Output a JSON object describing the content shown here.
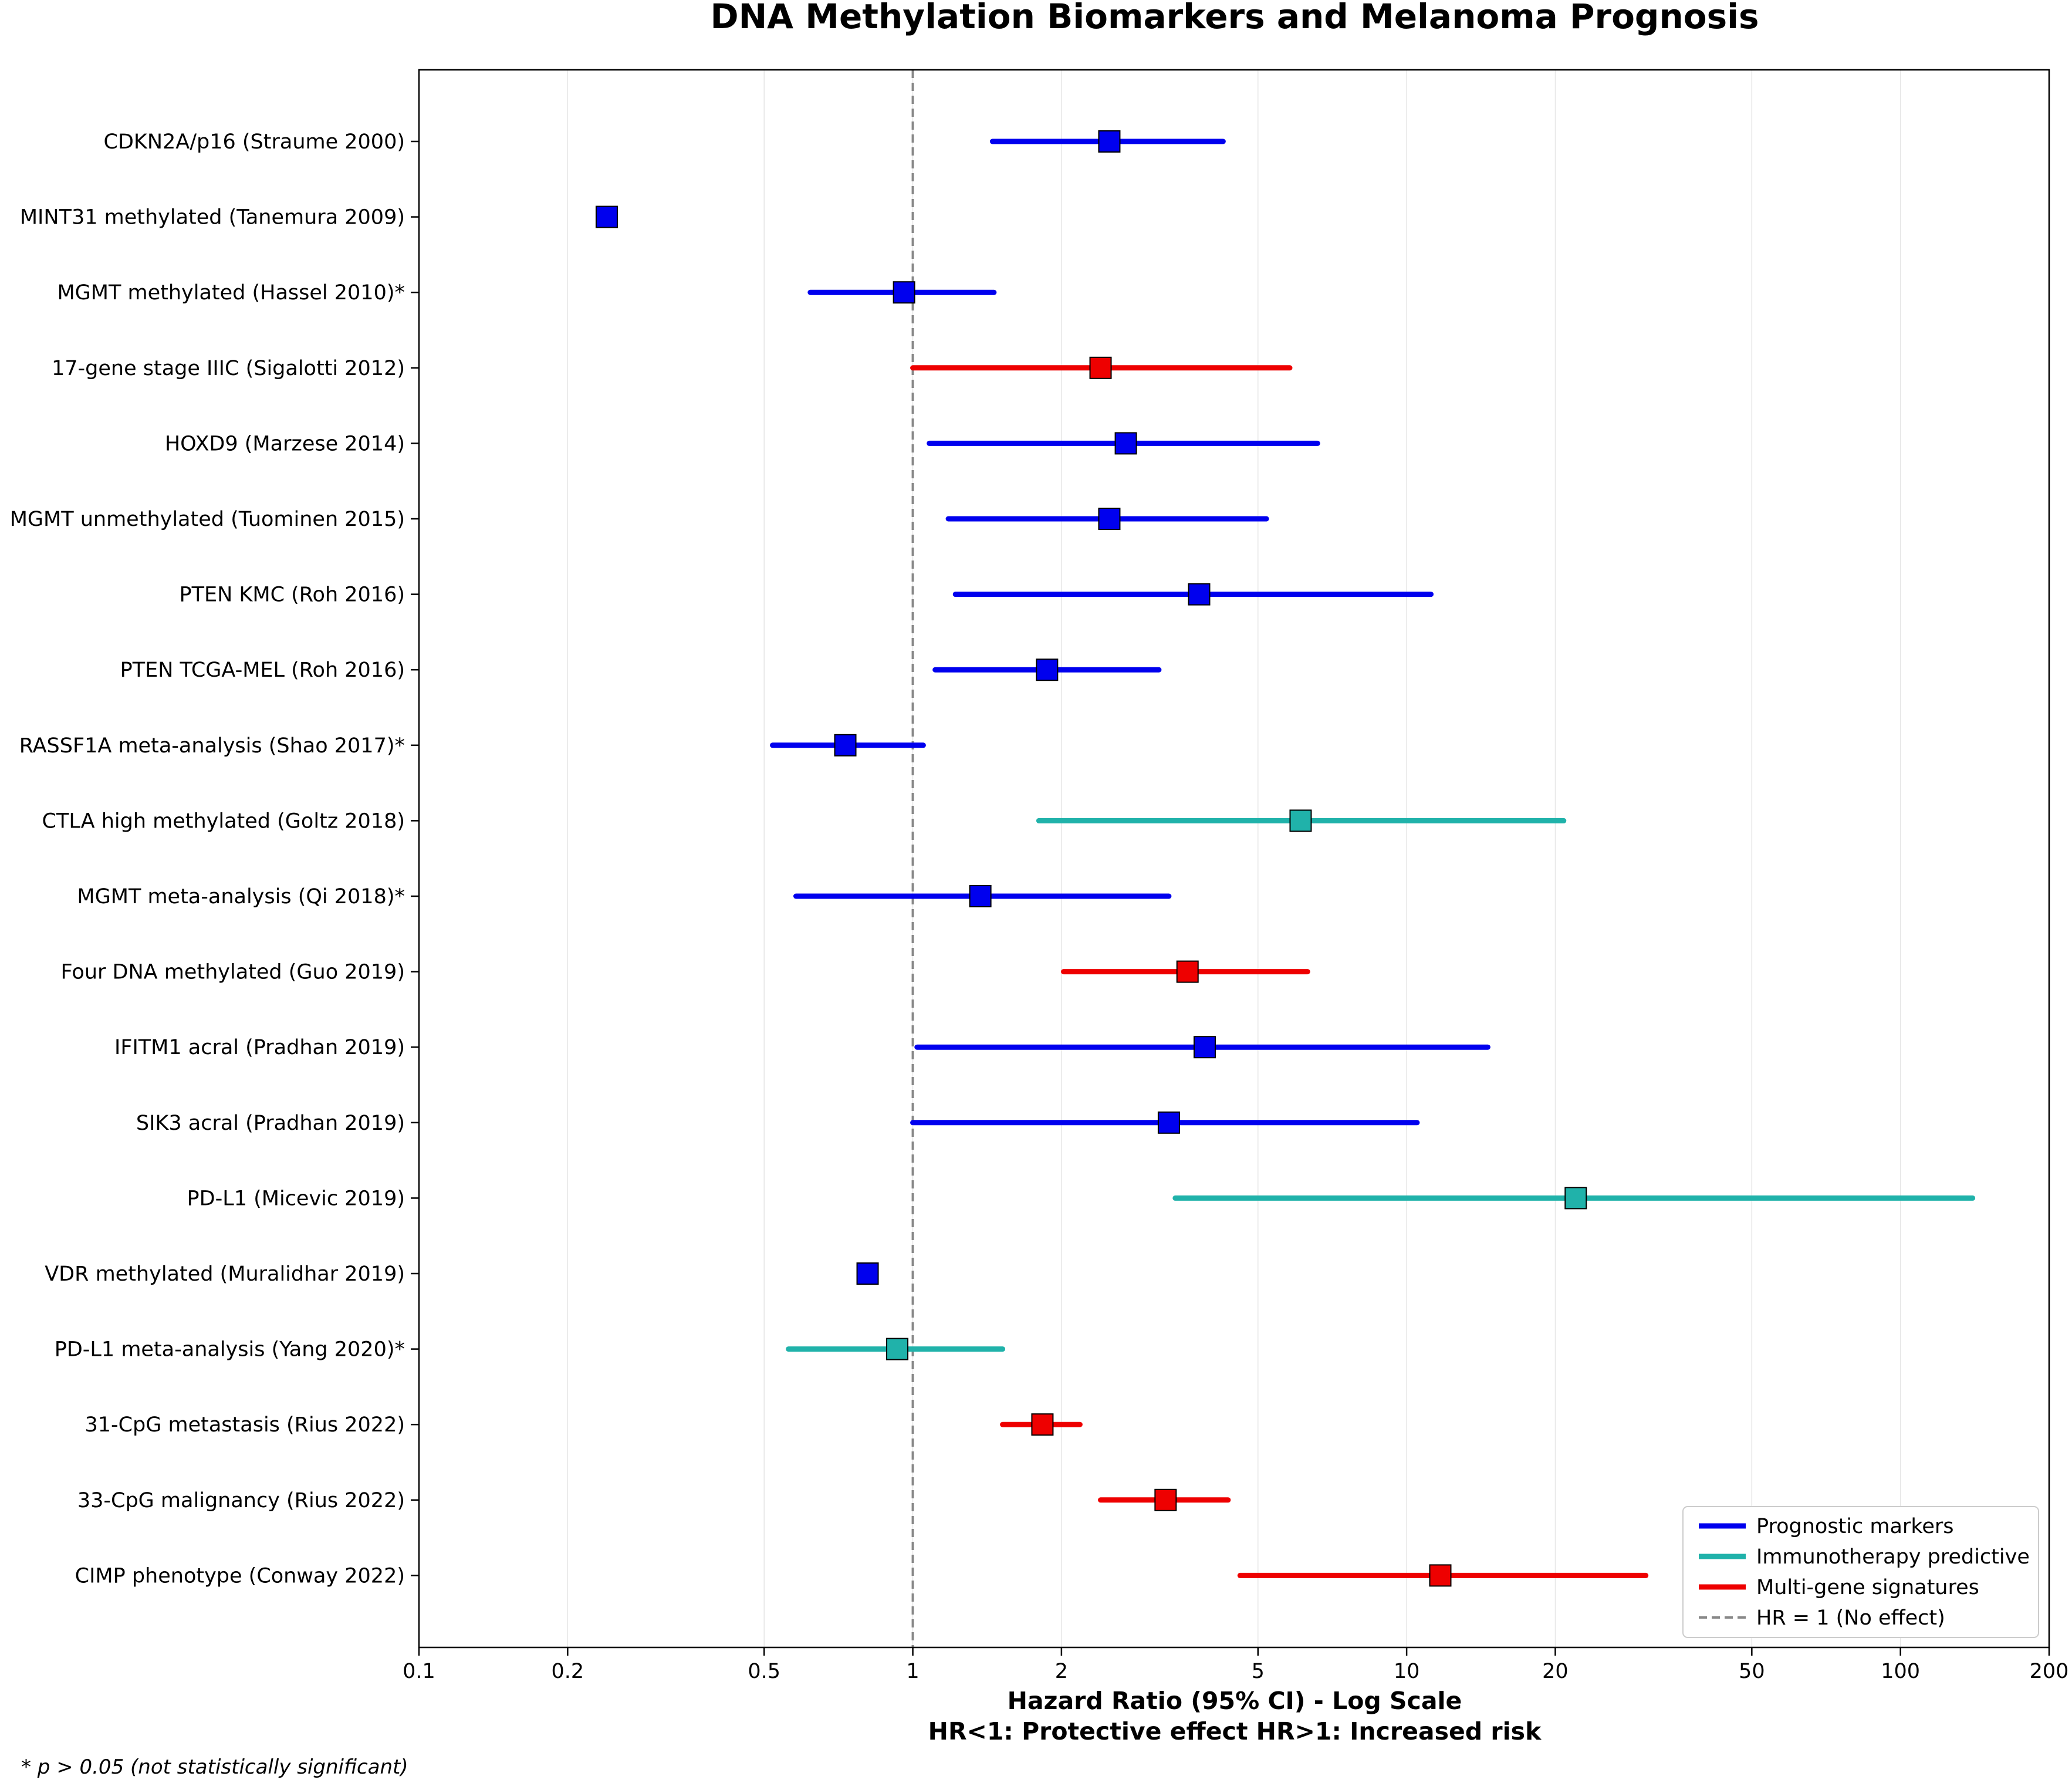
{
  "chart_data": {
    "type": "forest",
    "title": "DNA Methylation Biomarkers and Melanoma Prognosis",
    "xlabel_line1": "Hazard Ratio (95% CI) - Log Scale",
    "xlabel_line2": "HR<1: Protective effect    HR>1: Increased risk",
    "xscale": "log",
    "xlim": [
      0.1,
      200
    ],
    "xticks": [
      {
        "value": 0.1,
        "label": "0.1"
      },
      {
        "value": 0.2,
        "label": "0.2"
      },
      {
        "value": 0.5,
        "label": "0.5"
      },
      {
        "value": 1,
        "label": "1"
      },
      {
        "value": 2,
        "label": "2"
      },
      {
        "value": 5,
        "label": "5"
      },
      {
        "value": 10,
        "label": "10"
      },
      {
        "value": 20,
        "label": "20"
      },
      {
        "value": 50,
        "label": "50"
      },
      {
        "value": 100,
        "label": "100"
      },
      {
        "value": 200,
        "label": "200"
      }
    ],
    "grid": "vertical",
    "reference_line": {
      "value": 1,
      "label": "HR = 1 (No effect)",
      "color": "#888888"
    },
    "footnote": "* p > 0.05 (not statistically significant)",
    "legend_position": "bottom-right",
    "colors": {
      "prognostic": "#0000ee",
      "immunotherapy": "#20b2aa",
      "multigene": "#ee0000"
    },
    "legend": [
      {
        "key": "prognostic",
        "label": "Prognostic markers"
      },
      {
        "key": "immunotherapy",
        "label": "Immunotherapy predictive"
      },
      {
        "key": "multigene",
        "label": "Multi-gene signatures"
      }
    ],
    "studies": [
      {
        "label": "CDKN2A/p16 (Straume 2000)",
        "hr": 2.5,
        "low": 1.45,
        "high": 4.25,
        "group": "prognostic"
      },
      {
        "label": "MINT31 methylated (Tanemura 2009)",
        "hr": 0.24,
        "low": null,
        "high": null,
        "group": "prognostic"
      },
      {
        "label": "MGMT methylated (Hassel 2010)*",
        "hr": 0.96,
        "low": 0.62,
        "high": 1.46,
        "group": "prognostic"
      },
      {
        "label": "17-gene stage IIIC (Sigalotti 2012)",
        "hr": 2.4,
        "low": 1.0,
        "high": 5.8,
        "group": "multigene"
      },
      {
        "label": "HOXD9 (Marzese 2014)",
        "hr": 2.7,
        "low": 1.08,
        "high": 6.6,
        "group": "prognostic"
      },
      {
        "label": "MGMT unmethylated (Tuominen 2015)",
        "hr": 2.5,
        "low": 1.18,
        "high": 5.2,
        "group": "prognostic"
      },
      {
        "label": "PTEN KMC (Roh 2016)",
        "hr": 3.8,
        "low": 1.22,
        "high": 11.2,
        "group": "prognostic"
      },
      {
        "label": "PTEN TCGA-MEL (Roh 2016)",
        "hr": 1.87,
        "low": 1.11,
        "high": 3.15,
        "group": "prognostic"
      },
      {
        "label": "RASSF1A meta-analysis (Shao 2017)*",
        "hr": 0.73,
        "low": 0.52,
        "high": 1.05,
        "group": "prognostic"
      },
      {
        "label": "CTLA high methylated (Goltz 2018)",
        "hr": 6.1,
        "low": 1.8,
        "high": 20.8,
        "group": "immunotherapy"
      },
      {
        "label": "MGMT meta-analysis (Qi 2018)*",
        "hr": 1.37,
        "low": 0.58,
        "high": 3.3,
        "group": "prognostic"
      },
      {
        "label": "Four DNA methylated (Guo 2019)",
        "hr": 3.6,
        "low": 2.02,
        "high": 6.3,
        "group": "multigene"
      },
      {
        "label": "IFITM1 acral (Pradhan 2019)",
        "hr": 3.9,
        "low": 1.02,
        "high": 14.6,
        "group": "prognostic"
      },
      {
        "label": "SIK3 acral (Pradhan 2019)",
        "hr": 3.3,
        "low": 1.0,
        "high": 10.5,
        "group": "prognostic"
      },
      {
        "label": "PD-L1 (Micevic 2019)",
        "hr": 22.0,
        "low": 3.4,
        "high": 140.0,
        "group": "immunotherapy"
      },
      {
        "label": "VDR methylated (Muralidhar 2019)",
        "hr": 0.81,
        "low": null,
        "high": null,
        "group": "prognostic"
      },
      {
        "label": "PD-L1 meta-analysis (Yang 2020)*",
        "hr": 0.93,
        "low": 0.56,
        "high": 1.52,
        "group": "immunotherapy"
      },
      {
        "label": "31-CpG metastasis (Rius 2022)",
        "hr": 1.83,
        "low": 1.52,
        "high": 2.18,
        "group": "multigene"
      },
      {
        "label": "33-CpG malignancy (Rius 2022)",
        "hr": 3.25,
        "low": 2.4,
        "high": 4.35,
        "group": "multigene"
      },
      {
        "label": "CIMP phenotype (Conway 2022)",
        "hr": 11.7,
        "low": 4.6,
        "high": 30.5,
        "group": "multigene"
      }
    ]
  }
}
